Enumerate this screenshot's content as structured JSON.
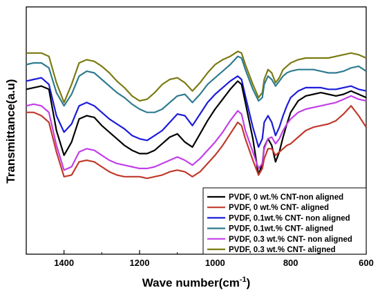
{
  "chart_data": {
    "type": "line",
    "title": "",
    "xlabel": "Wave number(cm",
    "xlabel_sup": "-1",
    "xlabel_close": ")",
    "ylabel": "Transmittance(a.u)",
    "xlim": [
      1500,
      600
    ],
    "x_reversed": true,
    "y_tick_labels": false,
    "grid": false,
    "legend_position": "bottom-right",
    "x_ticks": [
      1400,
      1200,
      1000,
      800,
      600
    ],
    "x_tick_labels": [
      "1400",
      "1200",
      "1000",
      "800",
      "600"
    ],
    "x": [
      1500,
      1480,
      1460,
      1440,
      1420,
      1400,
      1380,
      1360,
      1340,
      1320,
      1300,
      1280,
      1260,
      1240,
      1220,
      1200,
      1180,
      1160,
      1140,
      1120,
      1100,
      1080,
      1060,
      1040,
      1020,
      1000,
      980,
      960,
      940,
      930,
      920,
      900,
      885,
      875,
      870,
      860,
      850,
      840,
      830,
      820,
      810,
      800,
      780,
      760,
      740,
      720,
      700,
      680,
      660,
      640,
      620,
      600
    ],
    "series": [
      {
        "name": "PVDF, 0 wt.% CNT-non aligned",
        "color": "#000000",
        "values": [
          100,
          101,
          102,
          100,
          75,
          60,
          68,
          82,
          84,
          83,
          78,
          74,
          70,
          66,
          63,
          61,
          61,
          63,
          67,
          71,
          73,
          68,
          65,
          73,
          81,
          88,
          94,
          100,
          105,
          103,
          92,
          70,
          48,
          55,
          65,
          70,
          66,
          56,
          62,
          71,
          79,
          86,
          93,
          96,
          97,
          98,
          97,
          96,
          97,
          99,
          97,
          95
        ]
      },
      {
        "name": "PVDF, 0 wt.% CNT- aligned",
        "color": "#c0392b",
        "values": [
          86,
          86,
          84,
          80,
          62,
          47,
          48,
          56,
          57,
          56,
          53,
          50,
          48,
          47,
          47,
          47,
          46,
          47,
          48,
          50,
          51,
          50,
          47,
          50,
          55,
          60,
          66,
          73,
          80,
          78,
          70,
          57,
          48,
          52,
          58,
          64,
          64,
          60,
          62,
          64,
          66,
          67,
          71,
          75,
          77,
          78,
          79,
          81,
          85,
          90,
          84,
          77
        ]
      },
      {
        "name": "PVDF, 0.1wt.% CNT- non aligned",
        "color": "#1a1adb",
        "values": [
          105,
          106,
          107,
          103,
          84,
          74,
          79,
          90,
          92,
          90,
          86,
          82,
          79,
          76,
          72,
          70,
          69,
          72,
          75,
          80,
          85,
          84,
          78,
          85,
          92,
          97,
          101,
          105,
          108,
          106,
          96,
          77,
          65,
          70,
          80,
          84,
          80,
          72,
          77,
          84,
          90,
          95,
          99,
          101,
          101,
          101,
          100,
          100,
          101,
          102,
          100,
          99
        ]
      },
      {
        "name": "PVDF, 0.1wt.% CNT- aligned",
        "color": "#2e7b8f",
        "values": [
          115,
          116,
          116,
          113,
          98,
          90,
          97,
          108,
          111,
          110,
          106,
          102,
          98,
          95,
          91,
          88,
          86,
          86,
          88,
          92,
          96,
          97,
          92,
          97,
          103,
          107,
          111,
          115,
          120,
          119,
          112,
          100,
          93,
          95,
          103,
          108,
          106,
          102,
          105,
          108,
          110,
          111,
          112,
          112,
          112,
          111,
          110,
          110,
          111,
          113,
          114,
          111
        ]
      },
      {
        "name": "PVDF, 0.3 wt.% CNT- non aligned",
        "color": "#c23ee8",
        "values": [
          90,
          91,
          90,
          86,
          66,
          51,
          53,
          62,
          64,
          63,
          60,
          57,
          55,
          54,
          53,
          52,
          52,
          53,
          55,
          57,
          59,
          57,
          54,
          58,
          63,
          68,
          74,
          81,
          87,
          85,
          75,
          62,
          52,
          55,
          64,
          70,
          71,
          67,
          70,
          75,
          79,
          82,
          86,
          88,
          89,
          90,
          91,
          92,
          94,
          96,
          94,
          93
        ]
      },
      {
        "name": "PVDF, 0.3 wt.% CNT- aligned",
        "color": "#7a7a12",
        "values": [
          122,
          122,
          122,
          120,
          104,
          92,
          103,
          116,
          118,
          117,
          114,
          110,
          105,
          101,
          96,
          93,
          94,
          98,
          103,
          106,
          107,
          104,
          99,
          104,
          110,
          115,
          118,
          120,
          123,
          122,
          115,
          103,
          95,
          98,
          106,
          112,
          110,
          104,
          107,
          112,
          114,
          116,
          118,
          119,
          119,
          119,
          119,
          120,
          121,
          122,
          121,
          119
        ]
      }
    ]
  }
}
